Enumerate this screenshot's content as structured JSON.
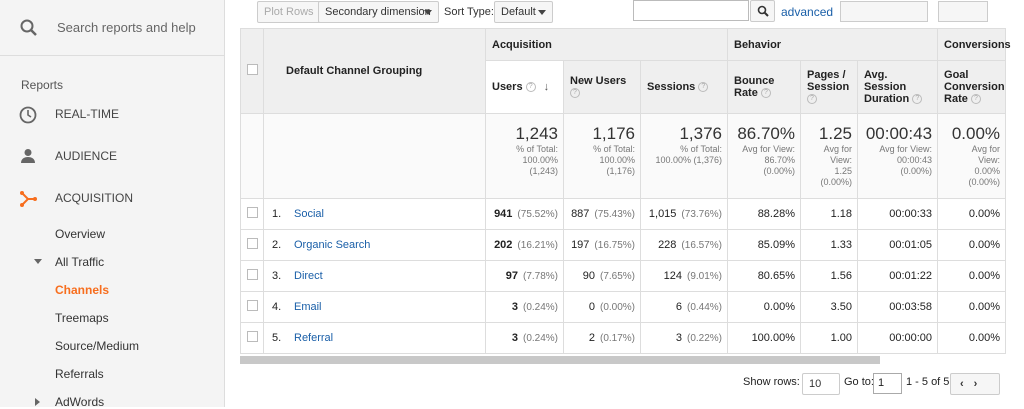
{
  "sidebar": {
    "search_placeholder": "Search reports and help",
    "section": "Reports",
    "nav": [
      "REAL-TIME",
      "AUDIENCE",
      "ACQUISITION"
    ],
    "sub_nav": [
      "Overview",
      "All Traffic",
      "Channels",
      "Treemaps",
      "Source/Medium",
      "Referrals",
      "AdWords"
    ]
  },
  "toolbar": {
    "plot_rows": "Plot Rows",
    "secondary_dimension": "Secondary dimension",
    "sort_type_label": "Sort Type:",
    "sort_type": "Default",
    "advanced": "advanced"
  },
  "table": {
    "dimension_header": "Default Channel Grouping",
    "groups": [
      {
        "name": "Acquisition",
        "span": 3
      },
      {
        "name": "Behavior",
        "span": 3
      },
      {
        "name": "Conversions",
        "span": 1
      }
    ],
    "columns": [
      "Users",
      "New Users",
      "Sessions",
      "Bounce Rate",
      "Pages / Session",
      "Avg. Session Duration",
      "Goal Conversion Rate"
    ],
    "totals": [
      {
        "value": "1,243",
        "note": [
          "% of Total:",
          "100.00%",
          "(1,243)"
        ]
      },
      {
        "value": "1,176",
        "note": [
          "% of Total:",
          "100.00%",
          "(1,176)"
        ]
      },
      {
        "value": "1,376",
        "note": [
          "% of Total:",
          "100.00% (1,376)"
        ]
      },
      {
        "value": "86.70%",
        "note": [
          "Avg for View:",
          "86.70%",
          "(0.00%)"
        ]
      },
      {
        "value": "1.25",
        "note": [
          "Avg for",
          "View:",
          "1.25",
          "(0.00%)"
        ]
      },
      {
        "value": "00:00:43",
        "note": [
          "Avg for View:",
          "00:00:43",
          "(0.00%)"
        ]
      },
      {
        "value": "0.00%",
        "note": [
          "Avg for",
          "View:",
          "0.00%",
          "(0.00%)"
        ]
      }
    ],
    "rows": [
      {
        "index": "1.",
        "name": "Social",
        "cells": [
          {
            "value": "941",
            "pct": "(75.52%)"
          },
          {
            "value": "887",
            "pct": "(75.43%)"
          },
          {
            "value": "1,015",
            "pct": "(73.76%)"
          },
          "88.28%",
          "1.18",
          "00:00:33",
          "0.00%"
        ]
      },
      {
        "index": "2.",
        "name": "Organic Search",
        "cells": [
          {
            "value": "202",
            "pct": "(16.21%)"
          },
          {
            "value": "197",
            "pct": "(16.75%)"
          },
          {
            "value": "228",
            "pct": "(16.57%)"
          },
          "85.09%",
          "1.33",
          "00:01:05",
          "0.00%"
        ]
      },
      {
        "index": "3.",
        "name": "Direct",
        "cells": [
          {
            "value": "97",
            "pct": "(7.78%)"
          },
          {
            "value": "90",
            "pct": "(7.65%)"
          },
          {
            "value": "124",
            "pct": "(9.01%)"
          },
          "80.65%",
          "1.56",
          "00:01:22",
          "0.00%"
        ]
      },
      {
        "index": "4.",
        "name": "Email",
        "cells": [
          {
            "value": "3",
            "pct": "(0.24%)"
          },
          {
            "value": "0",
            "pct": "(0.00%)"
          },
          {
            "value": "6",
            "pct": "(0.44%)"
          },
          "0.00%",
          "3.50",
          "00:03:58",
          "0.00%"
        ]
      },
      {
        "index": "5.",
        "name": "Referral",
        "cells": [
          {
            "value": "3",
            "pct": "(0.24%)"
          },
          {
            "value": "2",
            "pct": "(0.17%)"
          },
          {
            "value": "3",
            "pct": "(0.22%)"
          },
          "100.00%",
          "1.00",
          "00:00:00",
          "0.00%"
        ]
      }
    ]
  },
  "footer": {
    "show_rows_label": "Show rows:",
    "show_rows": "10",
    "goto_label": "Go to:",
    "goto": "1",
    "range": "1 - 5 of 5"
  }
}
